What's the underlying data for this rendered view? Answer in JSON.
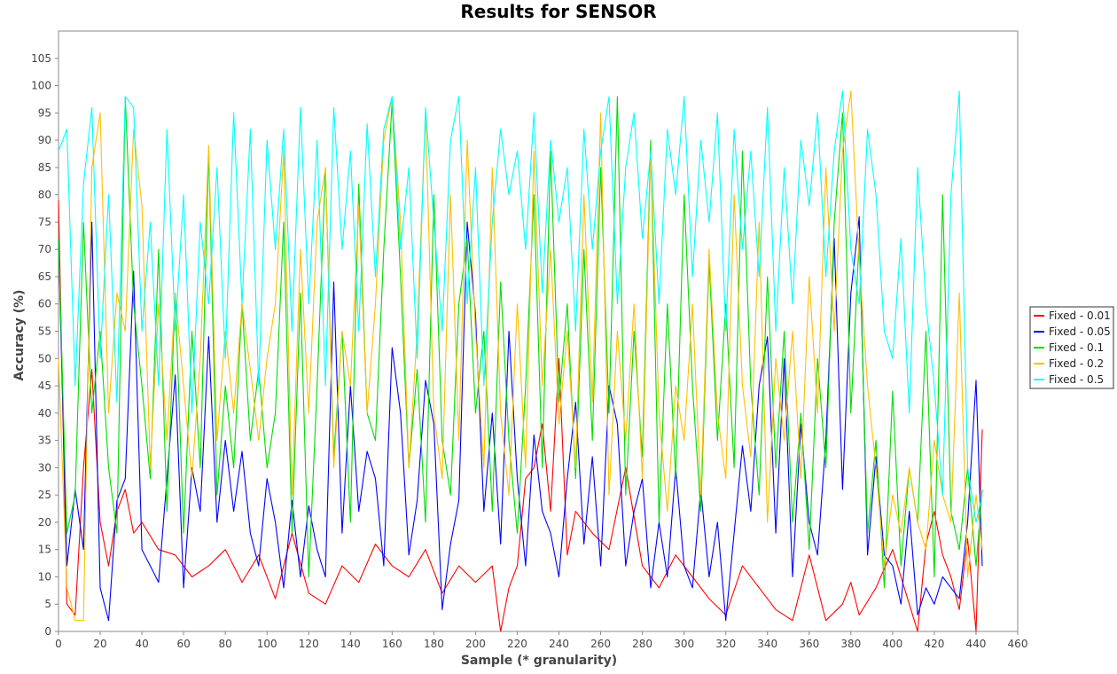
{
  "chart_data": {
    "type": "line",
    "title": "Results for SENSOR",
    "xlabel": "Sample (* granularity)",
    "ylabel": "Accuracy (%)",
    "xlim": [
      0,
      460
    ],
    "ylim": [
      0,
      110
    ],
    "x_ticks": [
      0,
      20,
      40,
      60,
      80,
      100,
      120,
      140,
      160,
      180,
      200,
      220,
      240,
      260,
      280,
      300,
      320,
      340,
      360,
      380,
      400,
      420,
      440,
      460
    ],
    "y_ticks": [
      0,
      5,
      10,
      15,
      20,
      25,
      30,
      35,
      40,
      45,
      50,
      55,
      60,
      65,
      70,
      75,
      80,
      85,
      90,
      95,
      100,
      105
    ],
    "grid": false,
    "legend_position": "right",
    "series": [
      {
        "name": "Fixed - 0.01",
        "color": "#ff0000",
        "x": [
          0,
          4,
          8,
          12,
          16,
          20,
          24,
          28,
          32,
          36,
          40,
          48,
          56,
          64,
          72,
          80,
          88,
          96,
          104,
          112,
          120,
          128,
          136,
          144,
          152,
          160,
          168,
          176,
          184,
          192,
          200,
          208,
          212,
          216,
          220,
          224,
          228,
          232,
          236,
          240,
          244,
          248,
          256,
          264,
          272,
          280,
          288,
          296,
          304,
          312,
          320,
          328,
          336,
          344,
          352,
          360,
          368,
          376,
          380,
          384,
          392,
          400,
          404,
          408,
          412,
          416,
          420,
          424,
          428,
          432,
          436,
          440,
          443
        ],
        "values": [
          79,
          5,
          3,
          30,
          48,
          20,
          12,
          22,
          26,
          18,
          20,
          15,
          14,
          10,
          12,
          15,
          9,
          14,
          6,
          18,
          7,
          5,
          12,
          9,
          16,
          12,
          10,
          15,
          7,
          12,
          9,
          12,
          0,
          8,
          12,
          28,
          30,
          38,
          22,
          50,
          14,
          22,
          18,
          15,
          30,
          12,
          8,
          14,
          10,
          6,
          3,
          12,
          8,
          4,
          2,
          14,
          2,
          5,
          9,
          3,
          8,
          15,
          10,
          5,
          0,
          16,
          22,
          14,
          10,
          4,
          17,
          0,
          37
        ]
      },
      {
        "name": "Fixed - 0.05",
        "color": "#0000ff",
        "x": [
          0,
          4,
          8,
          12,
          16,
          20,
          24,
          28,
          32,
          36,
          40,
          44,
          48,
          52,
          56,
          60,
          64,
          68,
          72,
          76,
          80,
          84,
          88,
          92,
          96,
          100,
          104,
          108,
          112,
          116,
          120,
          124,
          128,
          132,
          136,
          140,
          144,
          148,
          152,
          156,
          160,
          164,
          168,
          172,
          176,
          180,
          184,
          188,
          192,
          196,
          200,
          204,
          208,
          212,
          216,
          220,
          224,
          228,
          232,
          236,
          240,
          244,
          248,
          252,
          256,
          260,
          264,
          268,
          272,
          276,
          280,
          284,
          288,
          292,
          296,
          300,
          304,
          308,
          312,
          316,
          320,
          324,
          328,
          332,
          336,
          340,
          344,
          348,
          352,
          356,
          360,
          364,
          368,
          372,
          376,
          380,
          384,
          388,
          392,
          396,
          400,
          404,
          408,
          412,
          416,
          420,
          424,
          428,
          432,
          436,
          440,
          443
        ],
        "values": [
          72,
          12,
          26,
          15,
          75,
          8,
          2,
          24,
          28,
          66,
          15,
          12,
          9,
          28,
          47,
          8,
          30,
          22,
          54,
          20,
          35,
          22,
          33,
          18,
          12,
          28,
          20,
          8,
          24,
          10,
          23,
          15,
          10,
          64,
          18,
          45,
          22,
          33,
          28,
          12,
          52,
          40,
          14,
          24,
          46,
          38,
          4,
          16,
          24,
          75,
          58,
          22,
          40,
          16,
          55,
          28,
          12,
          36,
          22,
          18,
          10,
          28,
          42,
          16,
          32,
          12,
          45,
          38,
          12,
          22,
          28,
          8,
          20,
          10,
          30,
          12,
          8,
          26,
          10,
          20,
          2,
          18,
          34,
          22,
          45,
          54,
          18,
          50,
          10,
          38,
          20,
          14,
          35,
          72,
          26,
          62,
          76,
          14,
          32,
          14,
          12,
          5,
          22,
          3,
          8,
          5,
          10,
          8,
          6,
          20,
          46,
          12
        ]
      },
      {
        "name": "Fixed - 0.1",
        "color": "#00dd00",
        "x": [
          0,
          4,
          8,
          12,
          16,
          20,
          24,
          28,
          32,
          36,
          40,
          44,
          48,
          52,
          56,
          60,
          64,
          68,
          72,
          76,
          80,
          84,
          88,
          92,
          96,
          100,
          104,
          108,
          112,
          116,
          120,
          124,
          128,
          132,
          136,
          140,
          144,
          148,
          152,
          156,
          160,
          164,
          168,
          172,
          176,
          180,
          184,
          188,
          192,
          196,
          200,
          204,
          208,
          212,
          216,
          220,
          224,
          228,
          232,
          236,
          240,
          244,
          248,
          252,
          256,
          260,
          264,
          268,
          272,
          276,
          280,
          284,
          288,
          292,
          296,
          300,
          304,
          308,
          312,
          316,
          320,
          324,
          328,
          332,
          336,
          340,
          344,
          348,
          352,
          356,
          360,
          364,
          368,
          372,
          376,
          380,
          384,
          388,
          392,
          396,
          400,
          404,
          408,
          412,
          416,
          420,
          424,
          428,
          432,
          436,
          440,
          443
        ],
        "values": [
          72,
          18,
          25,
          75,
          40,
          55,
          30,
          18,
          98,
          60,
          45,
          28,
          70,
          22,
          62,
          18,
          55,
          30,
          88,
          25,
          45,
          30,
          60,
          35,
          48,
          30,
          40,
          75,
          18,
          62,
          10,
          45,
          85,
          32,
          55,
          20,
          82,
          40,
          35,
          70,
          97,
          65,
          30,
          48,
          20,
          80,
          35,
          25,
          60,
          72,
          40,
          55,
          22,
          64,
          35,
          18,
          45,
          80,
          30,
          88,
          42,
          60,
          28,
          70,
          35,
          85,
          40,
          98,
          25,
          55,
          32,
          90,
          20,
          60,
          28,
          80,
          45,
          22,
          68,
          35,
          60,
          30,
          88,
          45,
          25,
          65,
          30,
          55,
          20,
          40,
          15,
          50,
          30,
          75,
          95,
          40,
          72,
          18,
          35,
          8,
          44,
          12,
          30,
          20,
          55,
          10,
          80,
          22,
          15,
          30,
          12,
          26
        ]
      },
      {
        "name": "Fixed - 0.2",
        "color": "#ffc000",
        "x": [
          0,
          4,
          8,
          12,
          16,
          20,
          24,
          28,
          32,
          36,
          40,
          44,
          48,
          52,
          56,
          60,
          64,
          68,
          72,
          76,
          80,
          84,
          88,
          92,
          96,
          100,
          104,
          108,
          112,
          116,
          120,
          124,
          128,
          132,
          136,
          140,
          144,
          148,
          152,
          156,
          160,
          164,
          168,
          172,
          176,
          180,
          184,
          188,
          192,
          196,
          200,
          204,
          208,
          212,
          216,
          220,
          224,
          228,
          232,
          236,
          240,
          244,
          248,
          252,
          256,
          260,
          264,
          268,
          272,
          276,
          280,
          284,
          288,
          292,
          296,
          300,
          304,
          308,
          312,
          316,
          320,
          324,
          328,
          332,
          336,
          340,
          344,
          348,
          352,
          356,
          360,
          364,
          368,
          372,
          376,
          380,
          384,
          388,
          392,
          396,
          400,
          404,
          408,
          412,
          416,
          420,
          424,
          428,
          432,
          436,
          440,
          443
        ],
        "values": [
          50,
          8,
          2,
          2,
          85,
          95,
          40,
          62,
          55,
          92,
          78,
          30,
          60,
          35,
          62,
          45,
          28,
          50,
          89,
          35,
          55,
          40,
          60,
          48,
          35,
          50,
          60,
          88,
          25,
          70,
          40,
          75,
          85,
          30,
          55,
          45,
          78,
          40,
          60,
          90,
          98,
          75,
          30,
          55,
          95,
          40,
          28,
          80,
          35,
          90,
          55,
          30,
          85,
          40,
          25,
          60,
          30,
          88,
          45,
          70,
          38,
          55,
          30,
          80,
          42,
          95,
          25,
          55,
          35,
          60,
          28,
          88,
          40,
          22,
          45,
          35,
          60,
          25,
          70,
          40,
          28,
          80,
          45,
          32,
          75,
          20,
          50,
          35,
          55,
          28,
          65,
          40,
          85,
          55,
          88,
          99,
          68,
          45,
          30,
          12,
          25,
          18,
          30,
          20,
          15,
          35,
          25,
          20,
          62,
          10,
          25,
          15
        ]
      },
      {
        "name": "Fixed - 0.5",
        "color": "#00ffff",
        "x": [
          0,
          4,
          8,
          12,
          16,
          20,
          24,
          28,
          32,
          36,
          40,
          44,
          48,
          52,
          56,
          60,
          64,
          68,
          72,
          76,
          80,
          84,
          88,
          92,
          96,
          100,
          104,
          108,
          112,
          116,
          120,
          124,
          128,
          132,
          136,
          140,
          144,
          148,
          152,
          156,
          160,
          164,
          168,
          172,
          176,
          180,
          184,
          188,
          192,
          196,
          200,
          204,
          208,
          212,
          216,
          220,
          224,
          228,
          232,
          236,
          240,
          244,
          248,
          252,
          256,
          260,
          264,
          268,
          272,
          276,
          280,
          284,
          288,
          292,
          296,
          300,
          304,
          308,
          312,
          316,
          320,
          324,
          328,
          332,
          336,
          340,
          344,
          348,
          352,
          356,
          360,
          364,
          368,
          372,
          376,
          380,
          384,
          388,
          392,
          396,
          400,
          404,
          408,
          412,
          416,
          420,
          424,
          428,
          432,
          436,
          440,
          443
        ],
        "values": [
          88,
          92,
          45,
          82,
          96,
          50,
          80,
          42,
          98,
          96,
          55,
          75,
          45,
          92,
          55,
          80,
          40,
          75,
          60,
          85,
          50,
          95,
          60,
          92,
          45,
          90,
          70,
          92,
          55,
          96,
          60,
          90,
          45,
          96,
          70,
          88,
          55,
          93,
          65,
          92,
          98,
          70,
          85,
          50,
          96,
          75,
          55,
          90,
          98,
          60,
          85,
          45,
          75,
          92,
          80,
          88,
          70,
          95,
          62,
          90,
          75,
          85,
          55,
          92,
          70,
          88,
          98,
          60,
          85,
          95,
          72,
          88,
          60,
          92,
          80,
          98,
          65,
          90,
          75,
          95,
          55,
          92,
          70,
          88,
          65,
          96,
          55,
          85,
          60,
          90,
          78,
          95,
          65,
          88,
          99,
          70,
          60,
          92,
          80,
          55,
          50,
          72,
          40,
          85,
          60,
          45,
          25,
          80,
          99,
          30,
          20,
          25
        ]
      }
    ]
  }
}
